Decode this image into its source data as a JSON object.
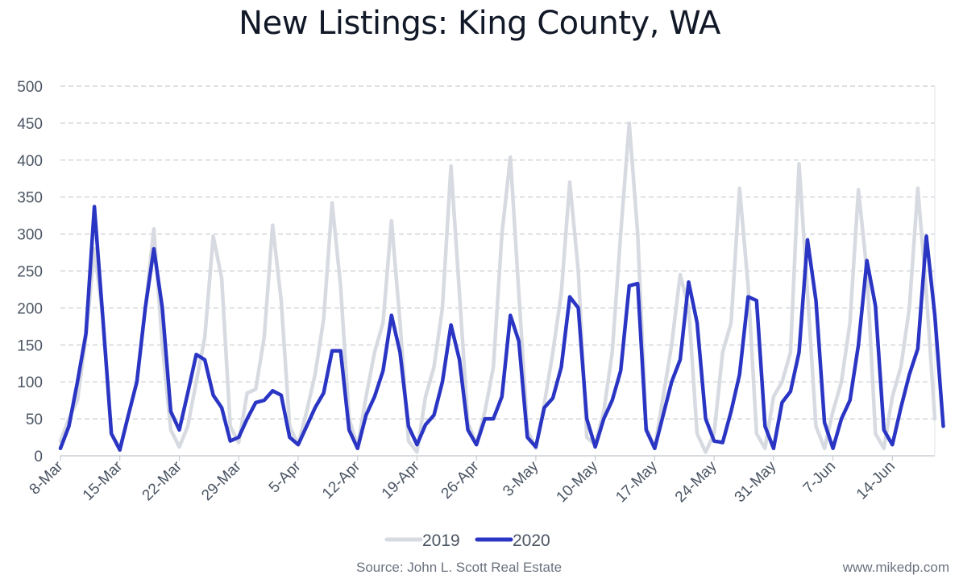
{
  "chart_data": {
    "type": "line",
    "title": "New Listings: King County, WA",
    "xlabel": "",
    "ylabel": "",
    "ylim": [
      0,
      500
    ],
    "yticks": [
      0,
      50,
      100,
      150,
      200,
      250,
      300,
      350,
      400,
      450,
      500
    ],
    "x_start": "2020-03-08",
    "x_tick_labels": [
      "8-Mar",
      "15-Mar",
      "22-Mar",
      "29-Mar",
      "5-Apr",
      "12-Apr",
      "19-Apr",
      "26-Apr",
      "3-May",
      "10-May",
      "17-May",
      "24-May",
      "31-May",
      "7-Jun",
      "14-Jun"
    ],
    "grid": true,
    "legend_position": "bottom",
    "colors": {
      "2019": "#d7dae0",
      "2020": "#2a35c4"
    },
    "series": [
      {
        "name": "2019",
        "values": [
          20,
          50,
          75,
          160,
          280,
          185,
          30,
          10,
          55,
          100,
          200,
          307,
          150,
          35,
          12,
          40,
          100,
          160,
          297,
          240,
          40,
          18,
          85,
          90,
          160,
          312,
          210,
          40,
          15,
          60,
          110,
          185,
          342,
          230,
          50,
          12,
          80,
          140,
          180,
          318,
          180,
          20,
          5,
          80,
          120,
          200,
          392,
          220,
          45,
          15,
          60,
          120,
          300,
          404,
          220,
          35,
          10,
          70,
          140,
          220,
          370,
          250,
          25,
          15,
          60,
          140,
          300,
          450,
          300,
          40,
          10,
          80,
          150,
          245,
          200,
          30,
          5,
          30,
          140,
          180,
          362,
          230,
          30,
          10,
          80,
          100,
          140,
          395,
          220,
          40,
          10,
          60,
          100,
          180,
          360,
          250,
          30,
          10,
          80,
          120,
          200,
          362,
          220,
          50
        ]
      },
      {
        "name": "2020",
        "values": [
          10,
          40,
          100,
          165,
          337,
          185,
          30,
          8,
          55,
          100,
          200,
          280,
          200,
          60,
          35,
          85,
          137,
          130,
          82,
          65,
          20,
          25,
          50,
          72,
          75,
          88,
          82,
          25,
          15,
          40,
          65,
          85,
          142,
          142,
          35,
          10,
          55,
          80,
          115,
          190,
          140,
          40,
          15,
          42,
          55,
          100,
          177,
          130,
          35,
          15,
          50,
          50,
          80,
          190,
          155,
          25,
          12,
          65,
          78,
          120,
          215,
          200,
          50,
          12,
          50,
          75,
          115,
          230,
          233,
          35,
          10,
          55,
          100,
          130,
          235,
          180,
          50,
          20,
          18,
          60,
          110,
          215,
          210,
          40,
          10,
          72,
          87,
          140,
          292,
          210,
          45,
          10,
          50,
          75,
          150,
          264,
          203,
          35,
          15,
          65,
          110,
          145,
          297,
          190,
          40
        ]
      }
    ]
  },
  "footer": {
    "source": "Source: John L. Scott Real Estate",
    "credit": "www.mikedp.com"
  }
}
